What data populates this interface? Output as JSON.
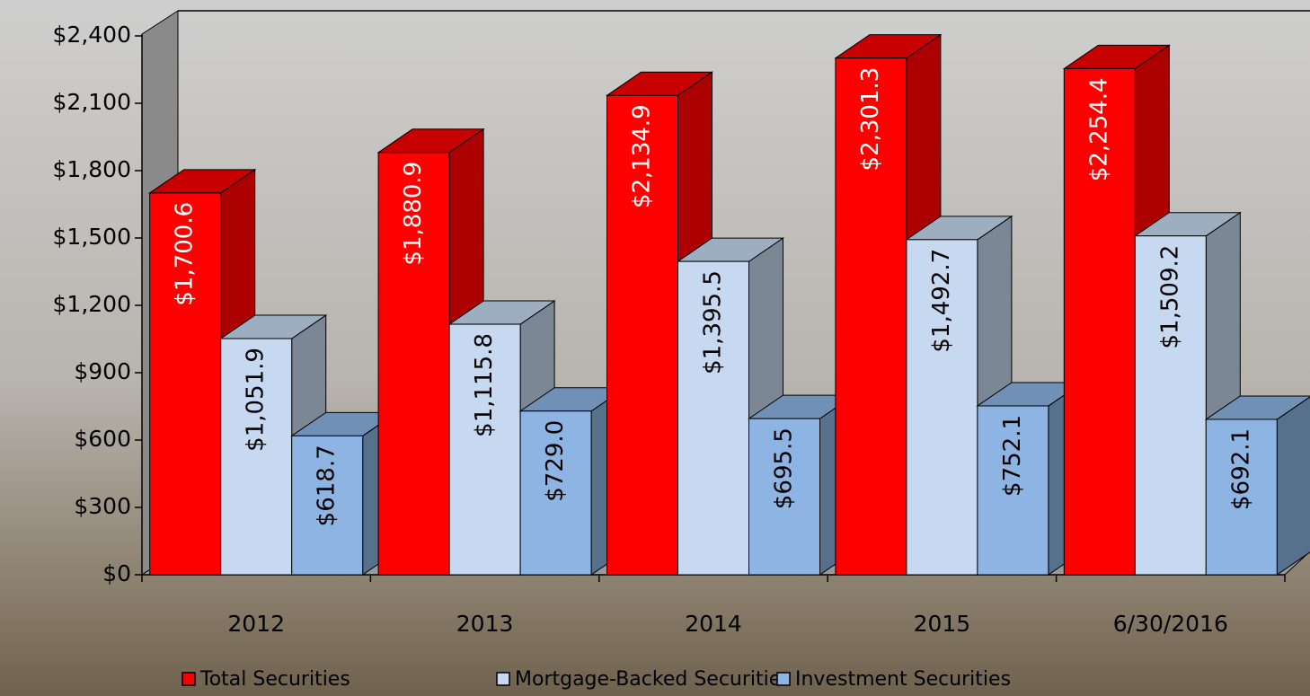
{
  "chart_data": {
    "type": "bar",
    "categories": [
      "2012",
      "2013",
      "2014",
      "2015",
      "6/30/2016"
    ],
    "series": [
      {
        "name": "Total Securities",
        "color": "#ff0000",
        "values": [
          1700.6,
          1880.9,
          2134.9,
          2301.3,
          2254.4
        ],
        "value_labels": [
          "$1,700.6",
          "$1,880.9",
          "$2,134.9",
          "$2,301.3",
          "$2,254.4"
        ]
      },
      {
        "name": "Mortgage-Backed Securities",
        "color": "#c6d9f1",
        "values": [
          1051.9,
          1115.8,
          1395.5,
          1492.7,
          1509.2
        ],
        "value_labels": [
          "$1,051.9",
          "$1,115.8",
          "$1,395.5",
          "$1,492.7",
          "$1,509.2"
        ]
      },
      {
        "name": "Investment Securities",
        "color": "#8db4e2",
        "values": [
          618.7,
          729.0,
          695.5,
          752.1,
          692.1
        ],
        "value_labels": [
          "$618.7",
          "$729.0",
          "$695.5",
          "$752.1",
          "$692.1"
        ]
      }
    ],
    "ylim": [
      0,
      2400
    ],
    "yticks": [
      {
        "value": 0,
        "label": "$0"
      },
      {
        "value": 300,
        "label": "$300"
      },
      {
        "value": 600,
        "label": "$600"
      },
      {
        "value": 900,
        "label": "$900"
      },
      {
        "value": 1200,
        "label": "$1,200"
      },
      {
        "value": 1500,
        "label": "$1,500"
      },
      {
        "value": 1800,
        "label": "$1,800"
      },
      {
        "value": 2100,
        "label": "$2,100"
      },
      {
        "value": 2400,
        "label": "$2,400"
      }
    ]
  }
}
